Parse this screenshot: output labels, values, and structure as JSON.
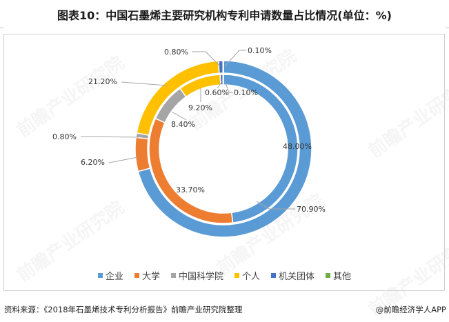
{
  "title": "图表10：中国石墨烯主要研究机构专利申请数量占比情况(单位：%)",
  "legend": [
    {
      "label": "企业",
      "color": "#5b9bd5"
    },
    {
      "label": "大学",
      "color": "#ed7d31"
    },
    {
      "label": "中国科学院",
      "color": "#a5a5a5"
    },
    {
      "label": "个人",
      "color": "#ffc000"
    },
    {
      "label": "机关团体",
      "color": "#4472c4"
    },
    {
      "label": "其他",
      "color": "#70ad47"
    }
  ],
  "footer": {
    "source": "资料来源：《2018年石墨烯技术专利分析报告》前瞻产业研究院整理",
    "credit": "@前瞻经济学人APP"
  },
  "watermark": "前瞻产业研究院",
  "chart_data": {
    "type": "pie",
    "subtype": "doughnut",
    "title": "图表10：中国石墨烯主要研究机构专利申请数量占比情况(单位：%)",
    "unit": "%",
    "categories": [
      "企业",
      "大学",
      "中国科学院",
      "个人",
      "机关团体",
      "其他"
    ],
    "colors": [
      "#5b9bd5",
      "#ed7d31",
      "#a5a5a5",
      "#ffc000",
      "#4472c4",
      "#70ad47"
    ],
    "series": [
      {
        "name": "outer ring",
        "values": [
          70.9,
          6.2,
          0.8,
          21.2,
          0.8,
          0.1
        ],
        "labels": [
          "70.90%",
          "6.20%",
          "0.80%",
          "21.20%",
          "0.80%",
          "0.10%"
        ]
      },
      {
        "name": "inner ring",
        "values": [
          48.0,
          33.7,
          8.4,
          9.2,
          0.6,
          0.1
        ],
        "labels": [
          "48.00%",
          "33.70%",
          "8.40%",
          "9.20%",
          "0.60%",
          "0.10%"
        ]
      }
    ],
    "legend_position": "bottom",
    "start_angle": "12 o'clock, clockwise"
  }
}
